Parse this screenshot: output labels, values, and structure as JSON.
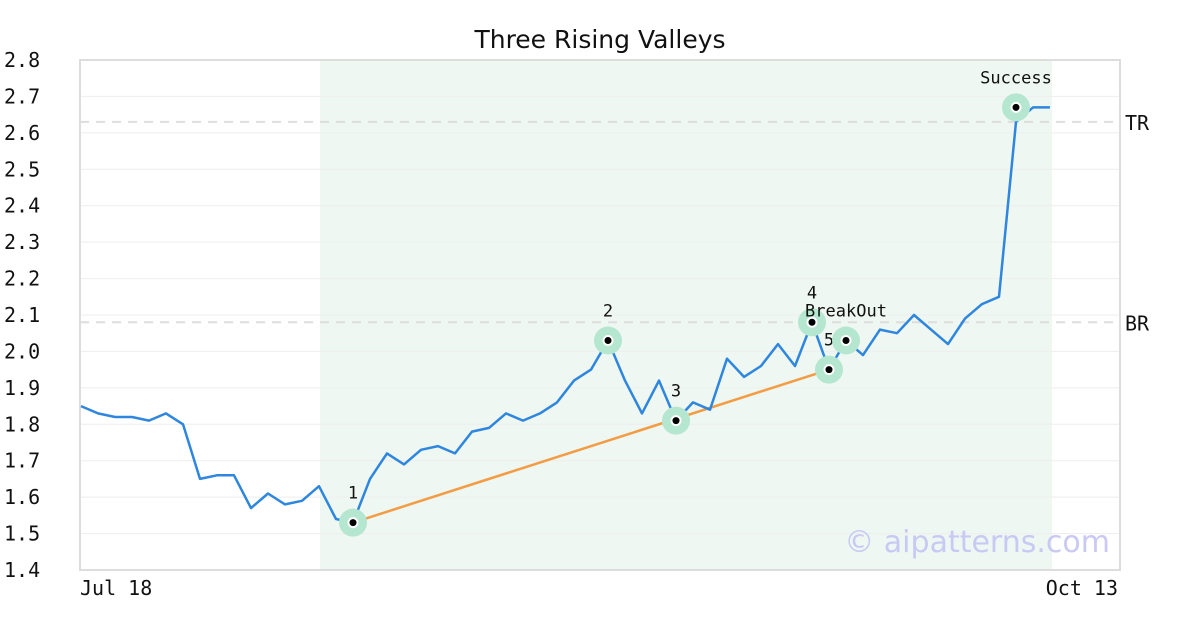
{
  "chart_data": {
    "type": "line",
    "title": "Three Rising Valleys",
    "xlabel": "",
    "ylabel": "",
    "ylim": [
      1.4,
      2.8
    ],
    "yticks": [
      "1.4",
      "1.5",
      "1.6",
      "1.7",
      "1.8",
      "1.9",
      "2.0",
      "2.1",
      "2.2",
      "2.3",
      "2.4",
      "2.5",
      "2.6",
      "2.7",
      "2.8"
    ],
    "x_start_label": "Jul 18",
    "x_end_label": "Oct 13",
    "grid": true,
    "colors": {
      "price": "#2e86de",
      "trend": "#f39c44",
      "shade": "#eef7f2",
      "marker_halo": "#b5e6cf",
      "hline": "#dddddd",
      "grid": "#eeeeee",
      "frame": "#dddddd",
      "watermark": "#c9c9f3"
    },
    "shade_range_index": [
      14,
      57
    ],
    "series": [
      {
        "values": [
          1.85,
          1.83,
          1.82,
          1.82,
          1.81,
          1.83,
          1.8,
          1.65,
          1.66,
          1.66,
          1.57,
          1.61,
          1.58,
          1.59,
          1.63,
          1.54,
          1.53,
          1.65,
          1.72,
          1.69,
          1.73,
          1.74,
          1.72,
          1.78,
          1.79,
          1.83,
          1.81,
          1.83,
          1.86,
          1.92,
          1.95,
          2.03,
          1.92,
          1.83,
          1.92,
          1.81,
          1.86,
          1.84,
          1.98,
          1.93,
          1.96,
          2.02,
          1.96,
          2.08,
          1.95,
          2.03,
          1.99,
          2.06,
          2.05,
          2.1,
          2.06,
          2.02,
          2.09,
          2.13,
          2.15,
          2.63,
          2.67,
          2.67
        ]
      }
    ],
    "trendline": [
      {
        "index": 16,
        "value": 1.53
      },
      {
        "index": 44,
        "value": 1.95
      }
    ],
    "hlines": [
      {
        "label": "TR",
        "value": 2.63
      },
      {
        "label": "BR",
        "value": 2.08
      }
    ],
    "points": [
      {
        "label": "1",
        "index": 16,
        "value": 1.53
      },
      {
        "label": "2",
        "index": 31,
        "value": 2.03
      },
      {
        "label": "3",
        "index": 35,
        "value": 1.81
      },
      {
        "label": "4",
        "index": 43,
        "value": 2.08
      },
      {
        "label": "5",
        "index": 44,
        "value": 1.95
      }
    ],
    "annotations": [
      {
        "text": "BreakOut",
        "index": 45,
        "value": 2.03
      },
      {
        "text": "Success",
        "index": 55,
        "value": 2.67
      }
    ],
    "watermark": "© aipatterns.com"
  }
}
